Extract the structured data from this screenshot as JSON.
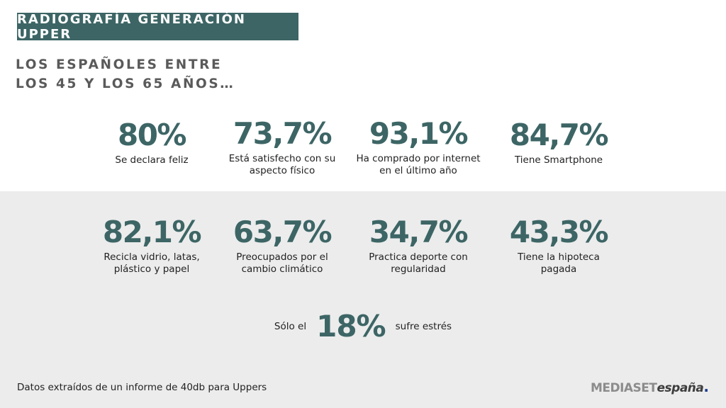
{
  "header": {
    "title": "RADIOGRAFÍA GENERACIÓN UPPER",
    "subtitle_line1": "LOS ESPAÑOLES ENTRE",
    "subtitle_line2": "LOS 45 Y LOS 65 AÑOS…"
  },
  "stats": [
    {
      "value": "80%",
      "label": "Se declara feliz"
    },
    {
      "value": "73,7%",
      "label": "Está satisfecho con su\naspecto físico"
    },
    {
      "value": "93,1%",
      "label": "Ha comprado por internet\nen el último año"
    },
    {
      "value": "84,7%",
      "label": "Tiene Smartphone"
    },
    {
      "value": "82,1%",
      "label": "Recicla vidrio, latas,\nplástico y papel"
    },
    {
      "value": "63,7%",
      "label": "Preocupados por el\ncambio climático"
    },
    {
      "value": "34,7%",
      "label": "Practica deporte con\nregularidad"
    },
    {
      "value": "43,3%",
      "label": "Tiene la hipoteca\npagada"
    }
  ],
  "stress": {
    "prefix": "Sólo el",
    "value": "18%",
    "suffix": "sufre estrés"
  },
  "footer": {
    "note": "Datos extraídos de un informe de 40db para Uppers",
    "logo_part1": "MEDIASET",
    "logo_part2": "españa",
    "logo_dot": "."
  },
  "colors": {
    "accent": "#3d6565",
    "band": "#ececec"
  }
}
